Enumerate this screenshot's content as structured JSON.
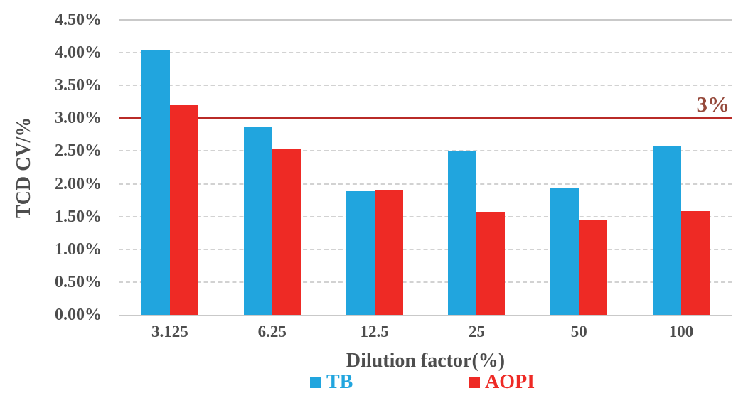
{
  "chart_data": {
    "type": "bar",
    "title": "",
    "categories": [
      "3.125",
      "6.25",
      "12.5",
      "25",
      "50",
      "100"
    ],
    "series": [
      {
        "name": "TB",
        "color": "#21A5DE",
        "values": [
          4.03,
          2.87,
          1.89,
          2.51,
          1.93,
          2.58
        ]
      },
      {
        "name": "AOPI",
        "color": "#EE2A25",
        "values": [
          3.2,
          2.53,
          1.9,
          1.57,
          1.44,
          1.58
        ]
      }
    ],
    "xlabel": "Dilution factor(%)",
    "ylabel": "TCD CV/%",
    "ylim": [
      0,
      4.5
    ],
    "ytick_values": [
      0,
      0.5,
      1.0,
      1.5,
      2.0,
      2.5,
      3.0,
      3.5,
      4.0,
      4.5
    ],
    "ytick_labels": [
      "0.00%",
      "0.50%",
      "1.00%",
      "1.50%",
      "2.00%",
      "2.50%",
      "3.00%",
      "3.50%",
      "4.00%",
      "4.50%"
    ],
    "grid": "horizontal-dashed",
    "legend_position": "bottom",
    "axis_text_color": "#4d4d4d",
    "ref_line": {
      "value": 3.0,
      "label": "3%",
      "line_color": "#B92B27",
      "label_color": "#95493B"
    }
  }
}
